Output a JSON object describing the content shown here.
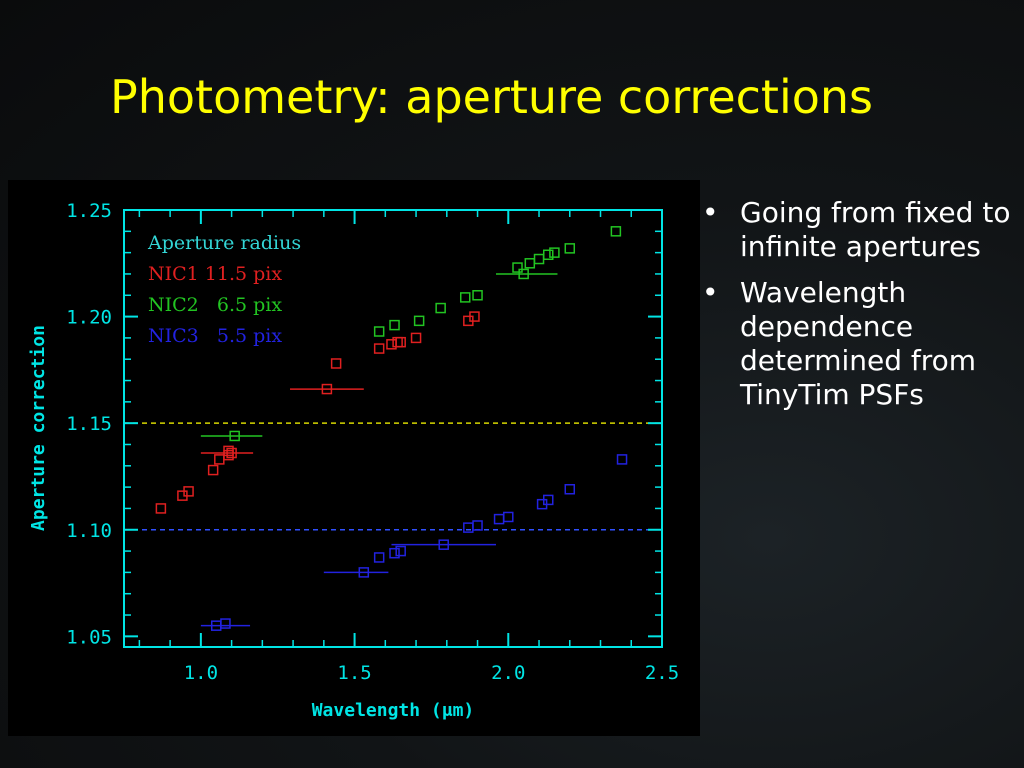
{
  "slide": {
    "title": "Photometry: aperture corrections",
    "bullets": [
      "Going from fixed to infinite apertures",
      "Wavelength dependence determined from TinyTim PSFs"
    ],
    "bullet_glyph": "•"
  },
  "chart_data": {
    "type": "scatter",
    "xlabel": "Wavelength (μm)",
    "ylabel": "Aperture correction",
    "xlim": [
      0.75,
      2.5
    ],
    "ylim": [
      1.045,
      1.25
    ],
    "x_ticks": [
      {
        "value": 1.0,
        "label": "1.0"
      },
      {
        "value": 1.5,
        "label": "1.5"
      },
      {
        "value": 2.0,
        "label": "2.0"
      },
      {
        "value": 2.5,
        "label": "2.5"
      }
    ],
    "y_ticks": [
      {
        "value": 1.05,
        "label": "1.05"
      },
      {
        "value": 1.1,
        "label": "1.10"
      },
      {
        "value": 1.15,
        "label": "1.15"
      },
      {
        "value": 1.2,
        "label": "1.20"
      },
      {
        "value": 1.25,
        "label": "1.25"
      }
    ],
    "axis_color": "#00e5e5",
    "legend": {
      "title": "Aperture radius",
      "title_color": "#33d6d6",
      "placement": "top-left",
      "entries": [
        {
          "label": "NIC1 11.5 pix",
          "color": "#e02020"
        },
        {
          "label": "NIC2   6.5 pix",
          "color": "#22c422"
        },
        {
          "label": "NIC3   5.5 pix",
          "color": "#2222e0"
        }
      ]
    },
    "reference_lines": [
      {
        "y": 1.15,
        "color": "#d8d800",
        "style": "dashed"
      },
      {
        "y": 1.1,
        "color": "#3050ff",
        "style": "dashed"
      }
    ],
    "series": [
      {
        "name": "NIC1 11.5 pix",
        "color": "#e02020",
        "points": [
          {
            "x": 0.87,
            "y": 1.11
          },
          {
            "x": 0.94,
            "y": 1.116
          },
          {
            "x": 0.96,
            "y": 1.118
          },
          {
            "x": 1.04,
            "y": 1.128
          },
          {
            "x": 1.06,
            "y": 1.133
          },
          {
            "x": 1.09,
            "y": 1.135
          },
          {
            "x": 1.09,
            "y": 1.137
          },
          {
            "x": 1.1,
            "y": 1.136,
            "xerr": [
              1.0,
              1.17
            ]
          },
          {
            "x": 1.41,
            "y": 1.166,
            "xerr": [
              1.29,
              1.53
            ]
          },
          {
            "x": 1.44,
            "y": 1.178
          },
          {
            "x": 1.58,
            "y": 1.185
          },
          {
            "x": 1.62,
            "y": 1.187
          },
          {
            "x": 1.64,
            "y": 1.188
          },
          {
            "x": 1.65,
            "y": 1.188
          },
          {
            "x": 1.7,
            "y": 1.19
          },
          {
            "x": 1.87,
            "y": 1.198
          },
          {
            "x": 1.89,
            "y": 1.2
          }
        ]
      },
      {
        "name": "NIC2   6.5 pix",
        "color": "#22c422",
        "points": [
          {
            "x": 1.11,
            "y": 1.144,
            "xerr": [
              1.0,
              1.2
            ]
          },
          {
            "x": 1.58,
            "y": 1.193
          },
          {
            "x": 1.63,
            "y": 1.196
          },
          {
            "x": 1.71,
            "y": 1.198
          },
          {
            "x": 1.78,
            "y": 1.204
          },
          {
            "x": 1.86,
            "y": 1.209
          },
          {
            "x": 1.9,
            "y": 1.21
          },
          {
            "x": 2.03,
            "y": 1.223
          },
          {
            "x": 2.05,
            "y": 1.22,
            "xerr": [
              1.96,
              2.16
            ]
          },
          {
            "x": 2.07,
            "y": 1.225
          },
          {
            "x": 2.1,
            "y": 1.227
          },
          {
            "x": 2.13,
            "y": 1.229
          },
          {
            "x": 2.15,
            "y": 1.23
          },
          {
            "x": 2.2,
            "y": 1.232
          },
          {
            "x": 2.35,
            "y": 1.24
          }
        ]
      },
      {
        "name": "NIC3   5.5 pix",
        "color": "#2222e0",
        "points": [
          {
            "x": 1.05,
            "y": 1.055,
            "xerr": [
              1.0,
              1.16
            ]
          },
          {
            "x": 1.08,
            "y": 1.056
          },
          {
            "x": 1.53,
            "y": 1.08,
            "xerr": [
              1.4,
              1.61
            ]
          },
          {
            "x": 1.58,
            "y": 1.087
          },
          {
            "x": 1.63,
            "y": 1.089
          },
          {
            "x": 1.65,
            "y": 1.09
          },
          {
            "x": 1.79,
            "y": 1.093,
            "xerr": [
              1.62,
              1.96
            ]
          },
          {
            "x": 1.87,
            "y": 1.101
          },
          {
            "x": 1.9,
            "y": 1.102
          },
          {
            "x": 1.97,
            "y": 1.105
          },
          {
            "x": 2.0,
            "y": 1.106
          },
          {
            "x": 2.11,
            "y": 1.112
          },
          {
            "x": 2.13,
            "y": 1.114
          },
          {
            "x": 2.2,
            "y": 1.119
          },
          {
            "x": 2.37,
            "y": 1.133
          }
        ]
      }
    ]
  }
}
